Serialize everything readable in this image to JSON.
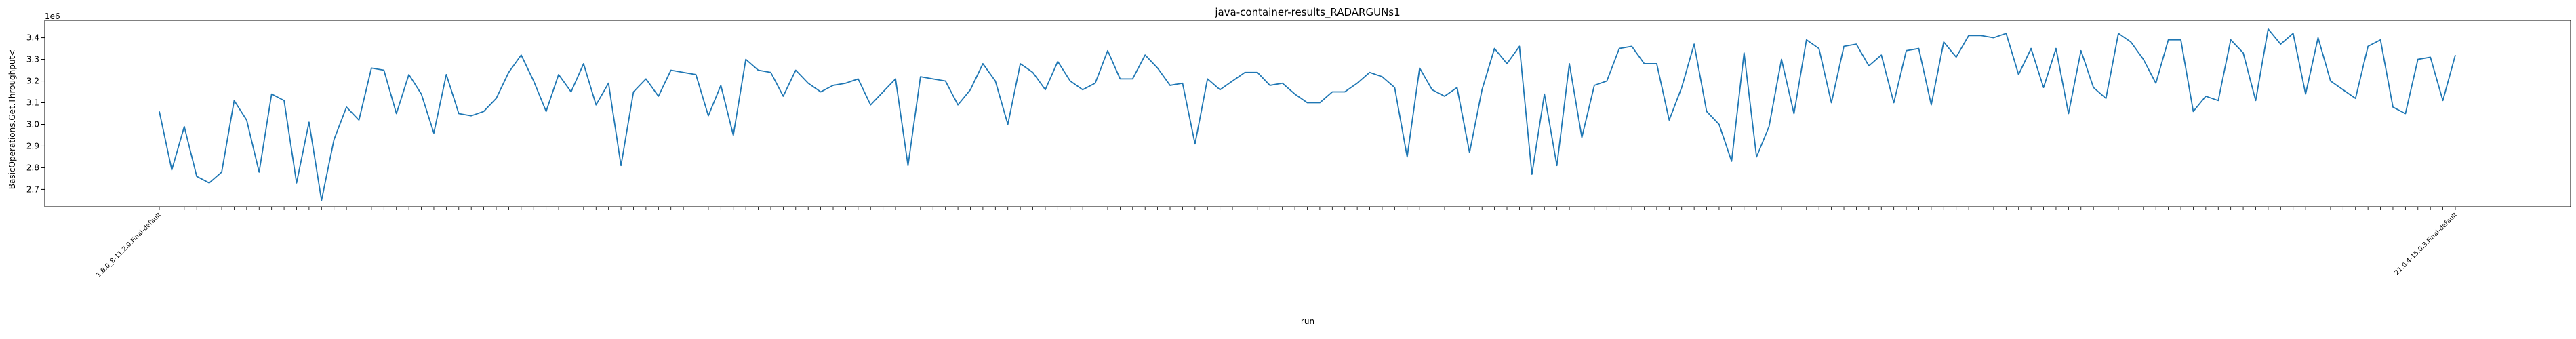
{
  "chart_data": {
    "type": "line",
    "title": "java-container-results_RADARGUNs1",
    "xlabel": "run",
    "ylabel": "BasicOperations.Get.Throughput<",
    "y_scale_label": "1e6",
    "y_multiplier": 1000000,
    "ylim": [
      2.62,
      3.48
    ],
    "yticks": [
      2.7,
      2.8,
      2.9,
      3.0,
      3.1,
      3.2,
      3.3,
      3.4
    ],
    "grid": false,
    "line_color": "#1f77b4",
    "first_tick_label": "1.8.0_8-11.2.0.Final-default",
    "last_tick_label": "21.0.4-15.0.3.Final-default",
    "series": [
      {
        "values": [
          3.06,
          2.79,
          2.99,
          2.76,
          2.73,
          2.78,
          3.11,
          3.02,
          2.78,
          3.14,
          3.11,
          2.73,
          3.01,
          2.65,
          2.93,
          3.08,
          3.02,
          3.26,
          3.25,
          3.05,
          3.23,
          3.14,
          2.96,
          3.23,
          3.05,
          3.04,
          3.06,
          3.12,
          3.24,
          3.32,
          3.2,
          3.06,
          3.23,
          3.15,
          3.28,
          3.09,
          3.19,
          2.81,
          3.15,
          3.21,
          3.13,
          3.25,
          3.24,
          3.23,
          3.04,
          3.18,
          2.95,
          3.3,
          3.25,
          3.24,
          3.13,
          3.25,
          3.19,
          3.15,
          3.18,
          3.19,
          3.21,
          3.09,
          3.15,
          3.21,
          2.81,
          3.22,
          3.21,
          3.2,
          3.09,
          3.16,
          3.28,
          3.2,
          3.0,
          3.28,
          3.24,
          3.16,
          3.29,
          3.2,
          3.16,
          3.19,
          3.34,
          3.21,
          3.21,
          3.32,
          3.26,
          3.18,
          3.19,
          2.91,
          3.21,
          3.16,
          3.2,
          3.24,
          3.24,
          3.18,
          3.19,
          3.14,
          3.1,
          3.1,
          3.15,
          3.15,
          3.19,
          3.24,
          3.22,
          3.17,
          2.85,
          3.26,
          3.16,
          3.13,
          3.17,
          2.87,
          3.16,
          3.35,
          3.28,
          3.36,
          2.77,
          3.14,
          2.81,
          3.28,
          2.94,
          3.18,
          3.2,
          3.35,
          3.36,
          3.28,
          3.28,
          3.02,
          3.17,
          3.37,
          3.06,
          3.0,
          2.83,
          3.33,
          2.85,
          2.99,
          3.3,
          3.05,
          3.39,
          3.35,
          3.1,
          3.36,
          3.37,
          3.27,
          3.32,
          3.1,
          3.34,
          3.35,
          3.09,
          3.38,
          3.31,
          3.41,
          3.41,
          3.4,
          3.42,
          3.23,
          3.35,
          3.17,
          3.35,
          3.05,
          3.34,
          3.17,
          3.12,
          3.42,
          3.38,
          3.3,
          3.19,
          3.39,
          3.39,
          3.06,
          3.13,
          3.11,
          3.39,
          3.33,
          3.11,
          3.44,
          3.37,
          3.42,
          3.14,
          3.4,
          3.2,
          3.16,
          3.12,
          3.36,
          3.39,
          3.08,
          3.05,
          3.3,
          3.31,
          3.11,
          3.32
        ]
      }
    ]
  }
}
